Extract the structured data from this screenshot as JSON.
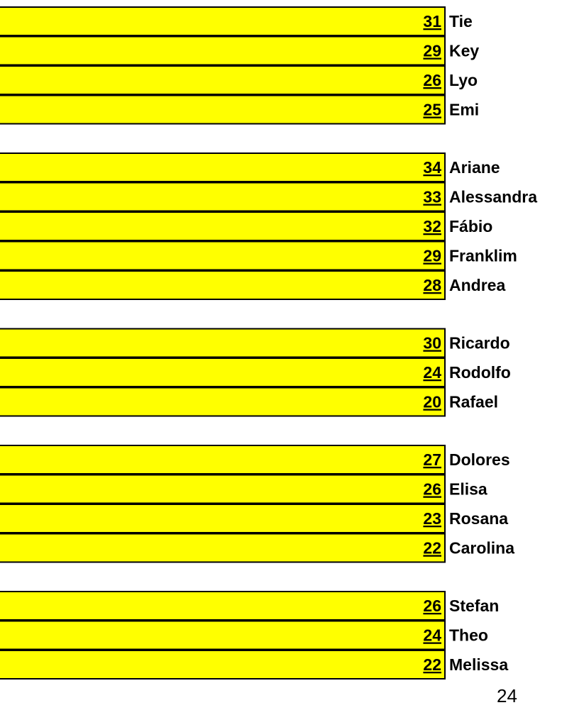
{
  "chart_data": {
    "type": "bar",
    "orientation": "horizontal",
    "bar_color": "#ffff00",
    "border_color": "#000000",
    "groups": [
      {
        "categories": [
          "Tie",
          "Key",
          "Lyo",
          "Emi"
        ],
        "values": [
          31,
          29,
          26,
          25
        ]
      },
      {
        "categories": [
          "Ariane",
          "Alessandra",
          "Fábio",
          "Franklim",
          "Andrea"
        ],
        "values": [
          34,
          33,
          32,
          29,
          28
        ]
      },
      {
        "categories": [
          "Ricardo",
          "Rodolfo",
          "Rafael"
        ],
        "values": [
          30,
          24,
          20
        ]
      },
      {
        "categories": [
          "Dolores",
          "Elisa",
          "Rosana",
          "Carolina"
        ],
        "values": [
          27,
          26,
          23,
          22
        ]
      },
      {
        "categories": [
          "Stefan",
          "Theo",
          "Melissa"
        ],
        "values": [
          26,
          24,
          22
        ]
      }
    ]
  },
  "page": {
    "number": "24"
  }
}
